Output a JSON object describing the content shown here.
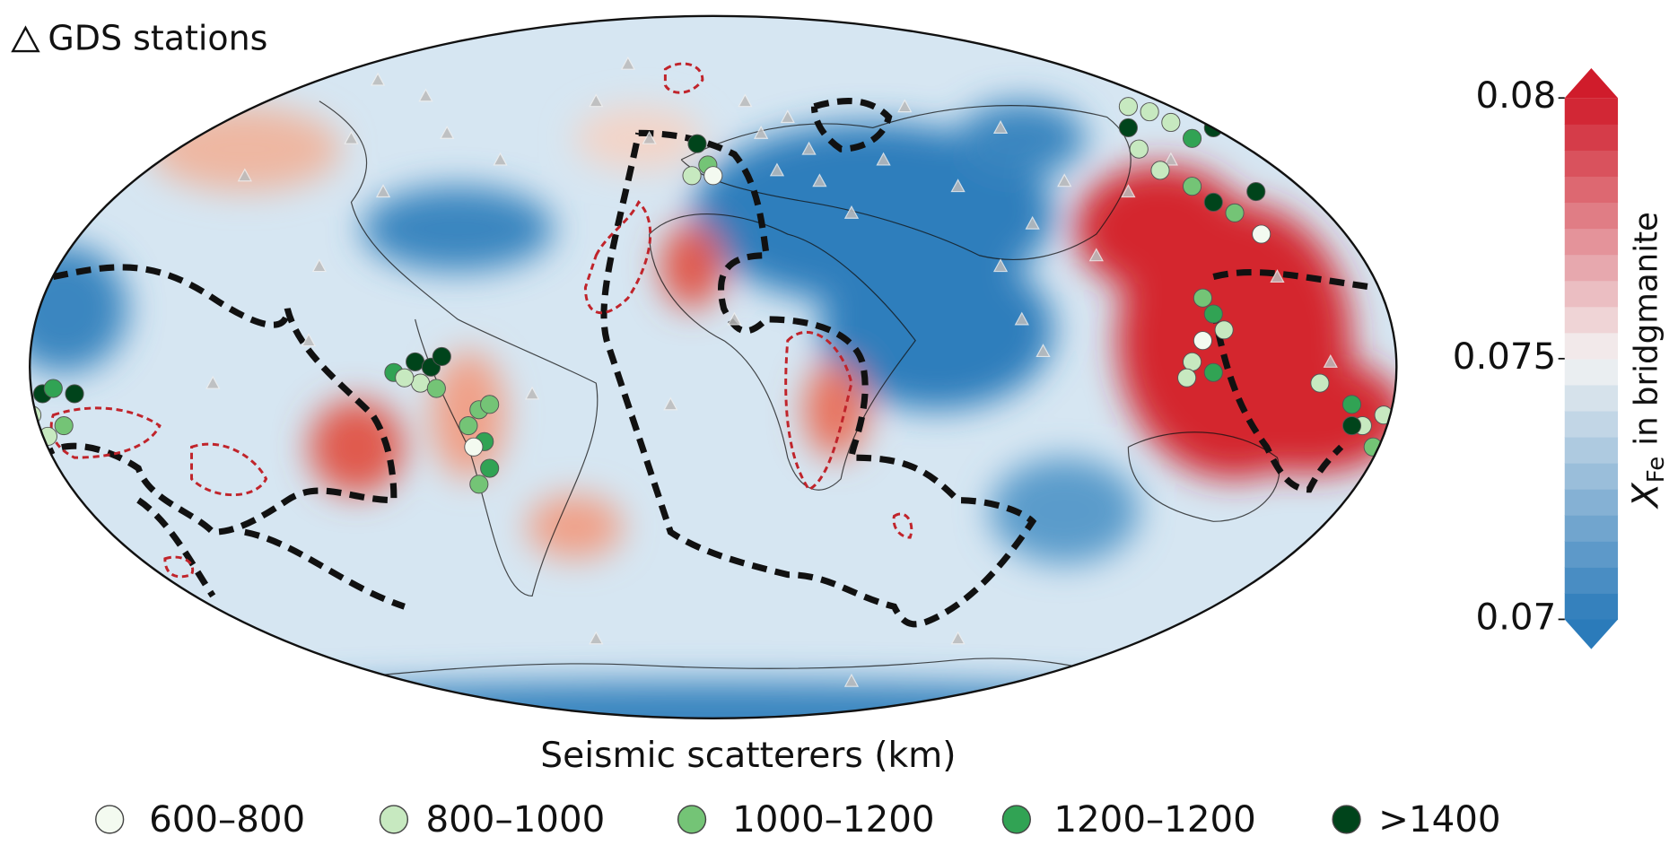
{
  "stations_label": "GDS stations",
  "legend": {
    "title": "Seismic scatterers (km)",
    "items": [
      {
        "label": "600–800",
        "color": "#f3faf0"
      },
      {
        "label": "800–1000",
        "color": "#c7e9c0"
      },
      {
        "label": "1000–1200",
        "color": "#74c476"
      },
      {
        "label": "1200–1200",
        "color": "#31a354"
      },
      {
        "label": ">1400",
        "color": "#00441b"
      }
    ]
  },
  "colorbar": {
    "label_symbol": "X",
    "label_subscript": "Fe",
    "label_text": "in bridgmanite",
    "lim": [
      0.07,
      0.08
    ],
    "ticks": [
      0.07,
      0.075,
      0.08
    ],
    "colors": [
      "#2b7bba",
      "#f4f4f4",
      "#d01c2b"
    ]
  }
}
